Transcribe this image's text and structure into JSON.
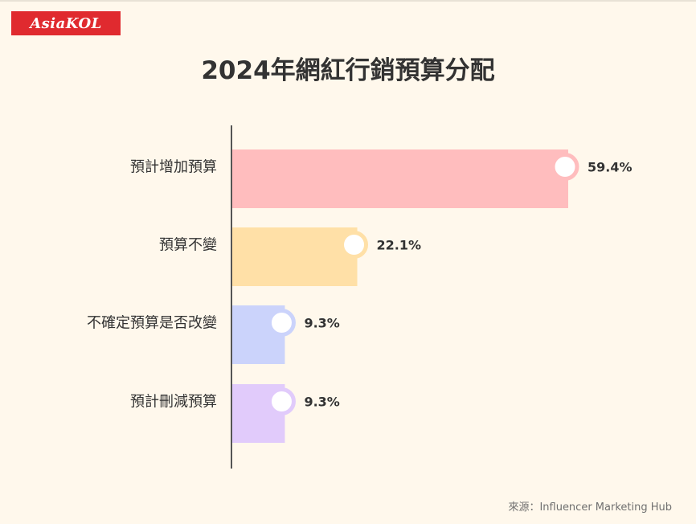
{
  "logo": {
    "text": "AsiaKOL",
    "color": "#e02a2f"
  },
  "title": "2024年網紅行銷預算分配",
  "source": "來源：Influencer Marketing Hub",
  "chart_data": {
    "type": "bar",
    "orientation": "horizontal",
    "title": "2024年網紅行銷預算分配",
    "categories": [
      "預計增加預算",
      "預算不變",
      "不確定預算是否改變",
      "預計刪減預算"
    ],
    "values": [
      59.4,
      22.1,
      9.3,
      9.3
    ],
    "value_labels": [
      "59.4%",
      "22.1%",
      "9.3%",
      "9.3%"
    ],
    "colors": [
      "#ffbdbe",
      "#ffe0a7",
      "#cbd3fb",
      "#e1cbfb"
    ],
    "ring_colors": [
      "#ffbdbe",
      "#ffe0a7",
      "#cbd3fb",
      "#e1cbfb"
    ],
    "unit": "%",
    "xlim": [
      0,
      59.4
    ],
    "grid": false,
    "legend": "none"
  }
}
